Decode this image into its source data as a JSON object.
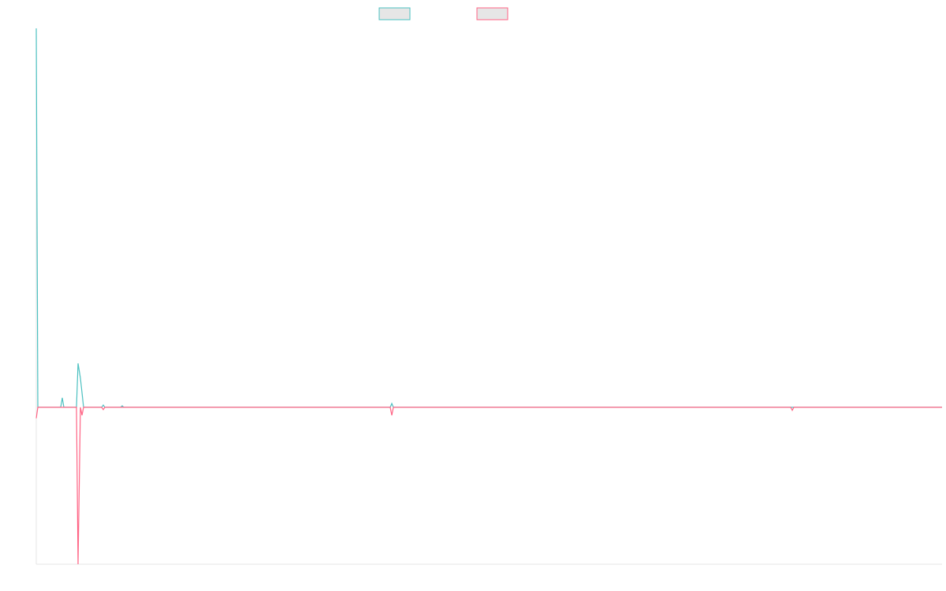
{
  "chart_data": {
    "type": "line",
    "x": [
      0,
      2,
      31,
      33,
      35,
      51,
      53,
      56,
      57,
      58,
      60,
      83,
      85,
      87,
      107,
      109,
      111,
      449,
      451,
      453,
      957,
      959,
      961,
      1149
    ],
    "xlim": [
      0,
      1149
    ],
    "ylim": [
      -41.4,
      100
    ],
    "series": [
      {
        "color": "#4bc0c0",
        "values": [
          100,
          0,
          0,
          2.5,
          0,
          0,
          11.6,
          7.7,
          5.8,
          3.9,
          0,
          0,
          0.6,
          0,
          0,
          0.4,
          0,
          0,
          1,
          0,
          0,
          0,
          0,
          0
        ]
      },
      {
        "color": "#ff6384",
        "values": [
          -2.9,
          0,
          0,
          0,
          0,
          0,
          -41.4,
          0,
          -1,
          -2.1,
          0,
          0,
          -0.6,
          0,
          0,
          0,
          0,
          0,
          -2.1,
          0,
          0,
          -0.8,
          0,
          0
        ]
      }
    ]
  }
}
